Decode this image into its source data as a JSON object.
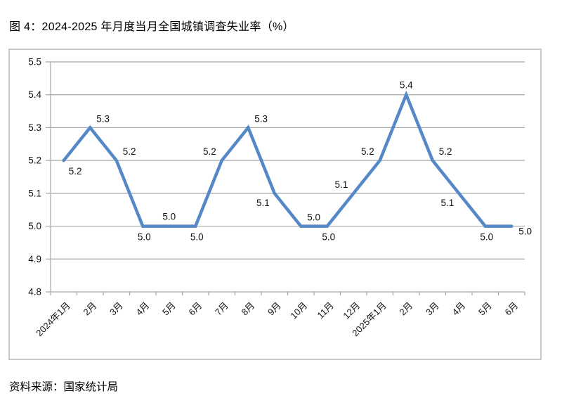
{
  "figure": {
    "title": "图 4：2024-2025 年月度当月全国城镇调查失业率（%）",
    "source": "资料来源：国家统计局"
  },
  "chart_data": {
    "type": "line",
    "title": "2024-2025 年月度当月全国城镇调查失业率（%）",
    "categories": [
      "2024年1月",
      "2月",
      "3月",
      "4月",
      "5月",
      "6月",
      "7月",
      "8月",
      "9月",
      "10月",
      "11月",
      "12月",
      "2025年1月",
      "2月",
      "3月",
      "4月",
      "5月",
      "6月"
    ],
    "values": [
      5.2,
      5.3,
      5.2,
      5.0,
      5.0,
      5.0,
      5.2,
      5.3,
      5.1,
      5.0,
      5.0,
      5.1,
      5.2,
      5.4,
      5.2,
      5.1,
      5.0,
      5.0
    ],
    "data_labels": [
      "5.2",
      "5.3",
      "5.2",
      "5.0",
      "5.0",
      "5.0",
      "5.2",
      "5.3",
      "5.1",
      "5.0",
      "5.0",
      "5.1",
      "5.2",
      "5.4",
      "5.2",
      "5.1",
      "5.0",
      "5.0"
    ],
    "label_positions": [
      "below-right",
      "above-right",
      "above-right",
      "below",
      "above",
      "below",
      "above-left",
      "above-right",
      "below-left",
      "above-right",
      "below",
      "above-left",
      "above-left",
      "above",
      "above-right",
      "below-left",
      "below",
      "right"
    ],
    "xlabel": "",
    "ylabel": "",
    "ylim": [
      4.8,
      5.5
    ],
    "ytick_step": 0.1,
    "yticks": [
      "5.5",
      "5.4",
      "5.3",
      "5.2",
      "5.1",
      "5.0",
      "4.9",
      "4.8"
    ],
    "x_label_rotation": -45,
    "grid": true,
    "legend": "none",
    "line_color": "#5588c6",
    "grid_color": "#a6a6a6",
    "text_color": "#111111"
  }
}
